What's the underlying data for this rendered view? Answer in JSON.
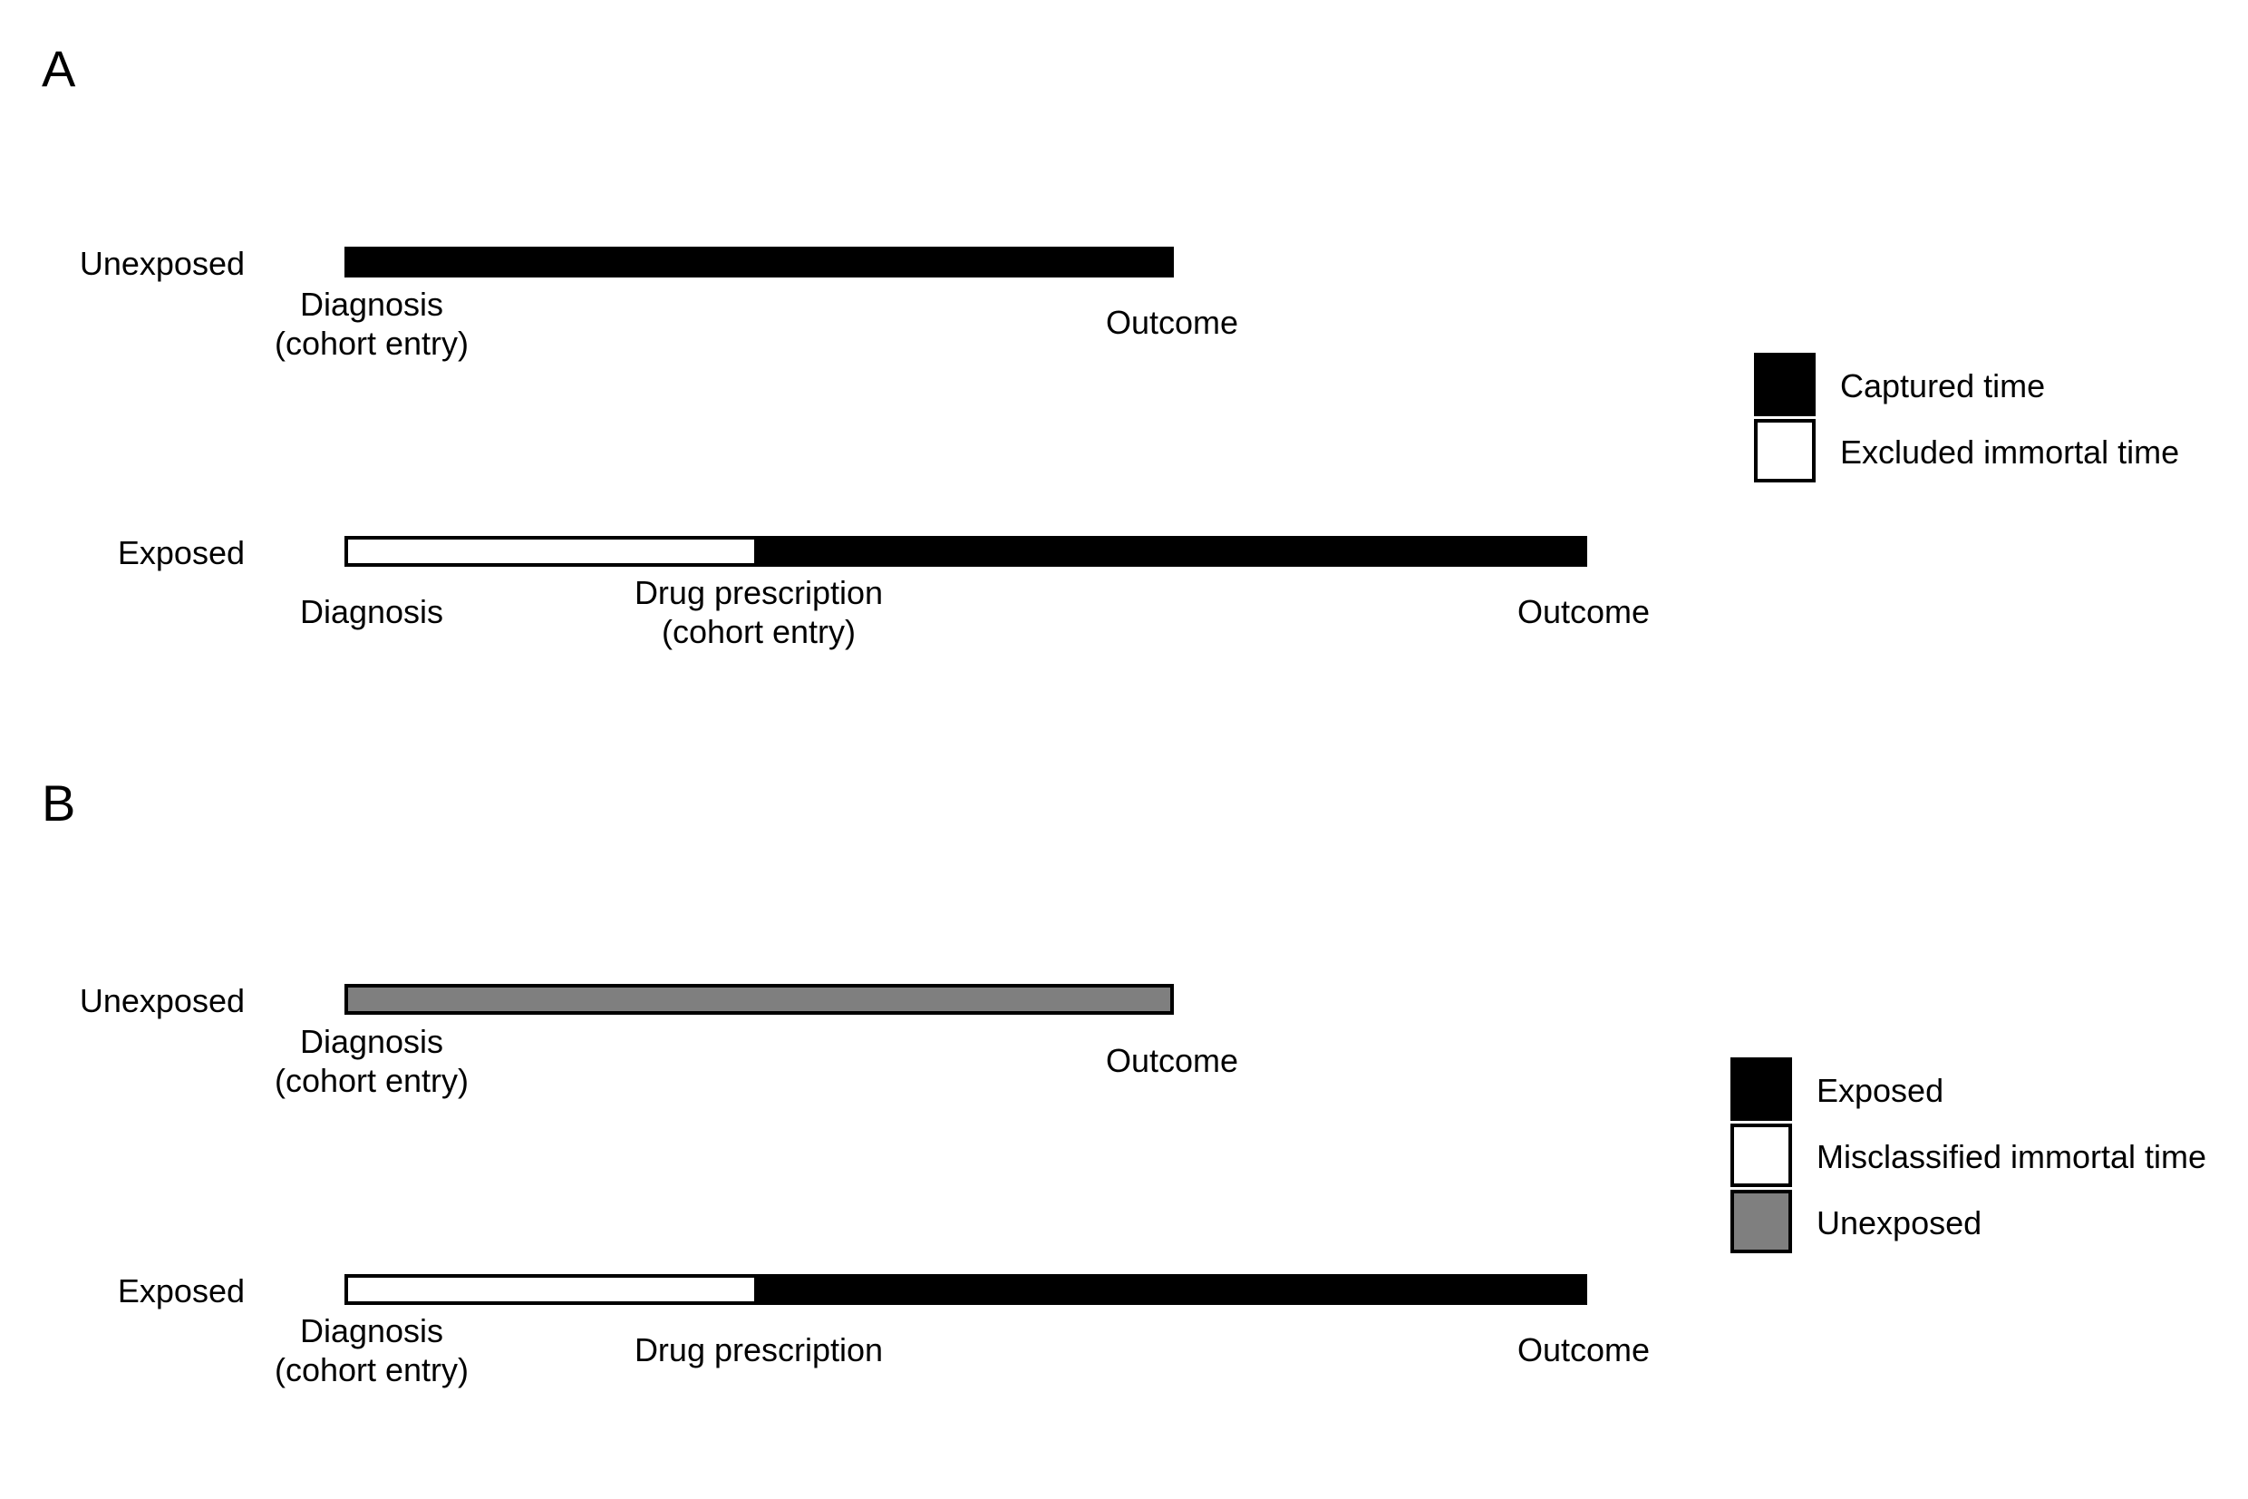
{
  "colors": {
    "captured": "#000000",
    "excluded": "#ffffff",
    "exposed": "#000000",
    "misclassified": "#ffffff",
    "unexposed": "#7f7f7f"
  },
  "panel_a": {
    "label": "A",
    "unexposed": {
      "row_label": "Unexposed",
      "start_label": "Diagnosis\n(cohort entry)",
      "end_label": "Outcome"
    },
    "exposed": {
      "row_label": "Exposed",
      "start_label": "Diagnosis",
      "mid_label": "Drug prescription\n(cohort entry)",
      "end_label": "Outcome"
    },
    "legend": [
      {
        "label": "Captured time",
        "color": "#000000"
      },
      {
        "label": "Excluded immortal time",
        "color": "#ffffff"
      }
    ]
  },
  "panel_b": {
    "label": "B",
    "unexposed": {
      "row_label": "Unexposed",
      "start_label": "Diagnosis\n(cohort entry)",
      "end_label": "Outcome"
    },
    "exposed": {
      "row_label": "Exposed",
      "start_label": "Diagnosis\n(cohort entry)",
      "mid_label": "Drug prescription",
      "end_label": "Outcome"
    },
    "legend": [
      {
        "label": "Exposed",
        "color": "#000000"
      },
      {
        "label": "Misclassified immortal time",
        "color": "#ffffff"
      },
      {
        "label": "Unexposed",
        "color": "#7f7f7f"
      }
    ]
  }
}
